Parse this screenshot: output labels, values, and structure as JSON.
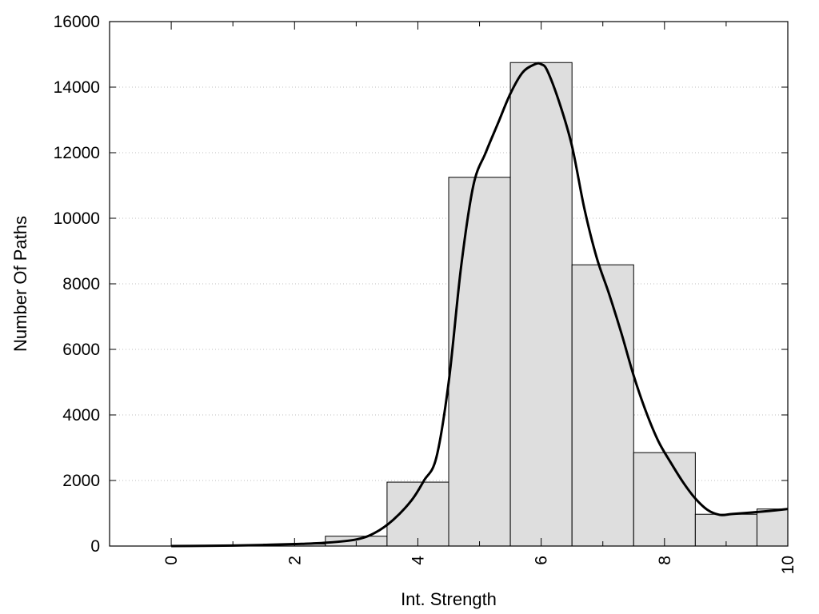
{
  "chart_data": {
    "type": "bar",
    "title": "",
    "xlabel": "Int. Strength",
    "ylabel": "Number Of Paths",
    "xlim": [
      -1,
      10
    ],
    "ylim": [
      0,
      16000
    ],
    "x_ticks": [
      0,
      2,
      4,
      6,
      8,
      10
    ],
    "x_tick_labels": [
      "0",
      "2",
      "4",
      "6",
      "8",
      "10"
    ],
    "y_ticks": [
      0,
      2000,
      4000,
      6000,
      8000,
      10000,
      12000,
      14000,
      16000
    ],
    "y_tick_labels": [
      "0",
      "2000",
      "4000",
      "6000",
      "8000",
      "10000",
      "12000",
      "14000",
      "16000"
    ],
    "grid": "horizontal-dotted",
    "bar_color": "#dedede",
    "line_color": "#000000",
    "bars": {
      "x": [
        0,
        1,
        2,
        3,
        4,
        5,
        6,
        7,
        8,
        9,
        10
      ],
      "values": [
        0,
        0,
        60,
        300,
        1950,
        11250,
        14750,
        8580,
        2850,
        970,
        1130
      ],
      "width": 1
    },
    "fit_curve": {
      "x": [
        0,
        0.5,
        1,
        1.5,
        2,
        2.5,
        3,
        3.3,
        3.6,
        3.9,
        4.1,
        4.3,
        4.5,
        4.7,
        4.9,
        5.1,
        5.3,
        5.5,
        5.7,
        5.9,
        6.0,
        6.1,
        6.3,
        6.5,
        6.7,
        6.9,
        7.1,
        7.3,
        7.5,
        7.7,
        7.9,
        8.1,
        8.3,
        8.5,
        8.7,
        8.9,
        9.1,
        9.4,
        9.7,
        10.0
      ],
      "y": [
        0,
        5,
        15,
        35,
        60,
        100,
        200,
        400,
        800,
        1400,
        2000,
        2700,
        5000,
        8500,
        11000,
        12000,
        12900,
        13800,
        14450,
        14700,
        14700,
        14500,
        13500,
        12200,
        10300,
        8800,
        7700,
        6500,
        5200,
        4100,
        3200,
        2550,
        1950,
        1450,
        1100,
        950,
        980,
        1020,
        1070,
        1130
      ]
    },
    "legend": "none"
  }
}
